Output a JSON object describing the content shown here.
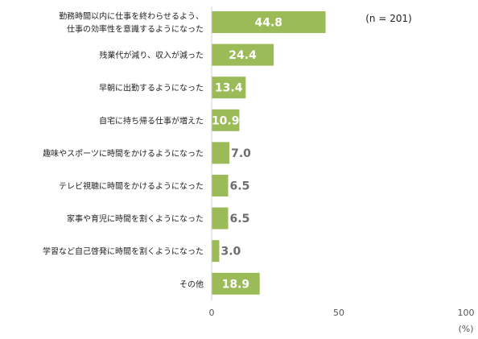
{
  "chart_data": {
    "type": "bar",
    "orientation": "horizontal",
    "note": "(n = 201)",
    "unit_label": "(%)",
    "xlim": [
      0,
      100
    ],
    "x_ticks": [
      0,
      50,
      100
    ],
    "bar_color": "#9bbb59",
    "categories": [
      [
        "勤務時間以内に仕事を終わらせるよう、",
        "仕事の効率性を意識するようになった"
      ],
      [
        "残業代が減り、収入が減った"
      ],
      [
        "早朝に出勤するようになった"
      ],
      [
        "自宅に持ち帰る仕事が増えた"
      ],
      [
        "趣味やスポーツに時間をかけるようになった"
      ],
      [
        "テレビ視聴に時間をかけるようになった"
      ],
      [
        "家事や育児に時間を割くようになった"
      ],
      [
        "学習など自己啓発に時間を割くようになった"
      ],
      [
        "その他"
      ]
    ],
    "values": [
      44.8,
      24.4,
      13.4,
      10.9,
      7.0,
      6.5,
      6.5,
      3.0,
      18.9
    ],
    "value_labels": [
      "44.8",
      "24.4",
      "13.4",
      "10.9",
      "7.0",
      "6.5",
      "6.5",
      "3.0",
      "18.9"
    ]
  }
}
